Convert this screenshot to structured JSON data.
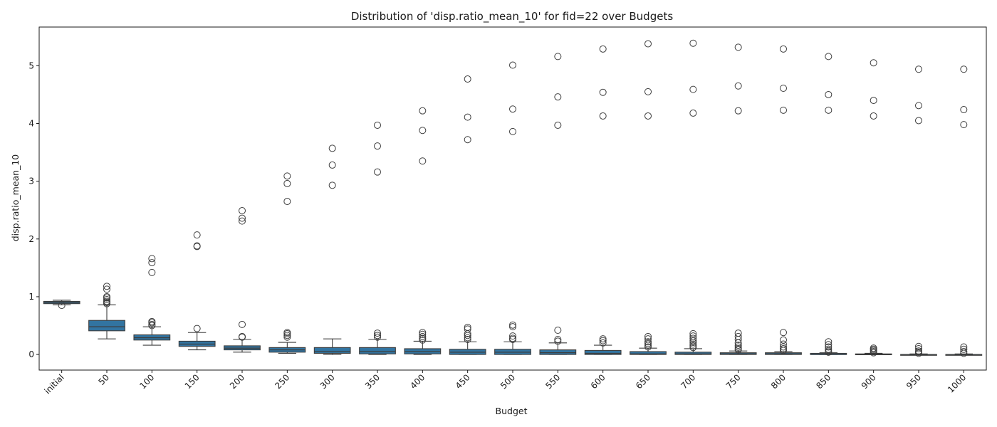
{
  "chart_data": {
    "type": "box",
    "title": "Distribution of 'disp.ratio_mean_10' for fid=22 over Budgets",
    "xlabel": "Budget",
    "ylabel": "disp.ratio_mean_10",
    "ylim": [
      -0.27,
      5.67
    ],
    "yticks": [
      0,
      1,
      2,
      3,
      4,
      5
    ],
    "grid": false,
    "colors": {
      "box_fill": "#3274a1",
      "line": "#3d3d3d",
      "flier_edge": "#3d3d3d"
    },
    "categories": [
      "initial",
      "50",
      "100",
      "150",
      "200",
      "250",
      "300",
      "350",
      "400",
      "450",
      "500",
      "550",
      "600",
      "650",
      "700",
      "750",
      "800",
      "850",
      "900",
      "950",
      "1000"
    ],
    "boxes": [
      {
        "category": "initial",
        "whisker_low": 0.86,
        "q1": 0.88,
        "median": 0.9,
        "q3": 0.92,
        "whisker_high": 0.94,
        "outliers": [
          0.85
        ]
      },
      {
        "category": "50",
        "whisker_low": 0.27,
        "q1": 0.41,
        "median": 0.48,
        "q3": 0.59,
        "whisker_high": 0.86,
        "outliers": [
          0.88,
          0.9,
          0.92,
          0.95,
          0.98,
          1.0,
          1.13,
          1.18
        ]
      },
      {
        "category": "100",
        "whisker_low": 0.16,
        "q1": 0.25,
        "median": 0.29,
        "q3": 0.34,
        "whisker_high": 0.48,
        "outliers": [
          0.5,
          0.52,
          0.55,
          0.57,
          1.42,
          1.59,
          1.66
        ]
      },
      {
        "category": "150",
        "whisker_low": 0.08,
        "q1": 0.14,
        "median": 0.18,
        "q3": 0.23,
        "whisker_high": 0.38,
        "outliers": [
          0.45,
          1.87,
          1.88,
          2.07
        ]
      },
      {
        "category": "200",
        "whisker_low": 0.04,
        "q1": 0.08,
        "median": 0.11,
        "q3": 0.15,
        "whisker_high": 0.26,
        "outliers": [
          0.3,
          0.31,
          0.52,
          2.31,
          2.36,
          2.49
        ]
      },
      {
        "category": "250",
        "whisker_low": 0.02,
        "q1": 0.04,
        "median": 0.08,
        "q3": 0.12,
        "whisker_high": 0.21,
        "outliers": [
          0.3,
          0.33,
          0.36,
          0.38,
          2.65,
          2.96,
          3.09
        ]
      },
      {
        "category": "300",
        "whisker_low": 0.0,
        "q1": 0.02,
        "median": 0.05,
        "q3": 0.12,
        "whisker_high": 0.27,
        "outliers": [
          2.93,
          3.28,
          3.57
        ]
      },
      {
        "category": "350",
        "whisker_low": 0.0,
        "q1": 0.01,
        "median": 0.05,
        "q3": 0.12,
        "whisker_high": 0.26,
        "outliers": [
          0.3,
          0.33,
          0.37,
          3.16,
          3.61,
          3.97
        ]
      },
      {
        "category": "400",
        "whisker_low": 0.0,
        "q1": 0.01,
        "median": 0.05,
        "q3": 0.1,
        "whisker_high": 0.23,
        "outliers": [
          0.25,
          0.28,
          0.31,
          0.35,
          0.38,
          3.35,
          3.88,
          4.22
        ]
      },
      {
        "category": "450",
        "whisker_low": 0.0,
        "q1": 0.0,
        "median": 0.04,
        "q3": 0.09,
        "whisker_high": 0.22,
        "outliers": [
          0.26,
          0.29,
          0.33,
          0.36,
          0.44,
          0.47,
          3.72,
          4.11,
          4.77
        ]
      },
      {
        "category": "500",
        "whisker_low": 0.0,
        "q1": 0.0,
        "median": 0.04,
        "q3": 0.09,
        "whisker_high": 0.22,
        "outliers": [
          0.26,
          0.28,
          0.32,
          0.48,
          0.51,
          3.86,
          4.25,
          5.01
        ]
      },
      {
        "category": "550",
        "whisker_low": 0.0,
        "q1": 0.0,
        "median": 0.03,
        "q3": 0.08,
        "whisker_high": 0.2,
        "outliers": [
          0.23,
          0.26,
          0.42,
          3.97,
          4.46,
          5.16
        ]
      },
      {
        "category": "600",
        "whisker_low": 0.0,
        "q1": 0.0,
        "median": 0.02,
        "q3": 0.07,
        "whisker_high": 0.16,
        "outliers": [
          0.2,
          0.24,
          0.27,
          4.13,
          4.54,
          5.29
        ]
      },
      {
        "category": "650",
        "whisker_low": 0.0,
        "q1": 0.0,
        "median": 0.01,
        "q3": 0.05,
        "whisker_high": 0.11,
        "outliers": [
          0.13,
          0.16,
          0.19,
          0.22,
          0.27,
          0.31,
          4.13,
          4.55,
          5.38
        ]
      },
      {
        "category": "700",
        "whisker_low": 0.0,
        "q1": 0.0,
        "median": 0.01,
        "q3": 0.04,
        "whisker_high": 0.1,
        "outliers": [
          0.12,
          0.15,
          0.18,
          0.21,
          0.24,
          0.28,
          0.32,
          0.36,
          4.18,
          4.59,
          5.39
        ]
      },
      {
        "category": "750",
        "whisker_low": 0.0,
        "q1": 0.0,
        "median": 0.01,
        "q3": 0.03,
        "whisker_high": 0.06,
        "outliers": [
          0.08,
          0.1,
          0.13,
          0.16,
          0.2,
          0.26,
          0.31,
          0.37,
          4.22,
          4.65,
          5.32
        ]
      },
      {
        "category": "800",
        "whisker_low": 0.0,
        "q1": 0.0,
        "median": 0.01,
        "q3": 0.03,
        "whisker_high": 0.05,
        "outliers": [
          0.07,
          0.1,
          0.13,
          0.18,
          0.25,
          0.38,
          4.23,
          4.61,
          5.29
        ]
      },
      {
        "category": "850",
        "whisker_low": 0.0,
        "q1": 0.0,
        "median": 0.0,
        "q3": 0.02,
        "whisker_high": 0.03,
        "outliers": [
          0.04,
          0.06,
          0.09,
          0.13,
          0.17,
          0.22,
          4.23,
          4.5,
          5.16
        ]
      },
      {
        "category": "900",
        "whisker_low": 0.0,
        "q1": 0.0,
        "median": 0.0,
        "q3": 0.01,
        "whisker_high": 0.02,
        "outliers": [
          0.03,
          0.05,
          0.07,
          0.09,
          0.11,
          4.13,
          4.4,
          5.05
        ]
      },
      {
        "category": "950",
        "whisker_low": 0.0,
        "q1": 0.0,
        "median": 0.0,
        "q3": 0.0,
        "whisker_high": 0.01,
        "outliers": [
          0.02,
          0.04,
          0.06,
          0.1,
          0.14,
          4.05,
          4.31,
          4.94
        ]
      },
      {
        "category": "1000",
        "whisker_low": 0.0,
        "q1": 0.0,
        "median": 0.0,
        "q3": 0.0,
        "whisker_high": 0.01,
        "outliers": [
          0.02,
          0.05,
          0.09,
          0.13,
          3.98,
          4.24,
          4.94
        ]
      }
    ]
  }
}
